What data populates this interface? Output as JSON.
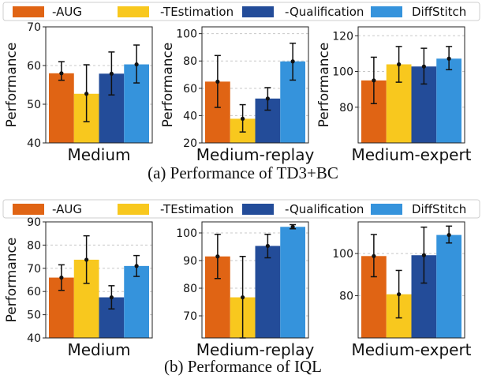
{
  "legend_items": [
    "-AUG",
    "-TEstimation",
    "-Qualification",
    "DiffStitch"
  ],
  "colors": [
    "#e06414",
    "#f8c81e",
    "#234c99",
    "#3593dc"
  ],
  "groups": [
    {
      "caption": "(a) Performance of TD3+BC"
    },
    {
      "caption": "(b) Performance of IQL"
    }
  ],
  "chart_data": [
    {
      "type": "bar",
      "group": 0,
      "title": "",
      "xlabel": "Medium",
      "ylabel": "Performance",
      "ylim": [
        40,
        70
      ],
      "yticks": [
        40,
        50,
        60,
        70
      ],
      "grid": true,
      "series": [
        {
          "name": "-AUG",
          "value": 58.0,
          "err": [
            56.2,
            61.0
          ]
        },
        {
          "name": "-TEstimation",
          "value": 52.7,
          "err": [
            45.5,
            60.2
          ]
        },
        {
          "name": "-Qualification",
          "value": 57.9,
          "err": [
            52.4,
            63.5
          ]
        },
        {
          "name": "DiffStitch",
          "value": 60.3,
          "err": [
            55.5,
            65.3
          ]
        }
      ]
    },
    {
      "type": "bar",
      "group": 0,
      "title": "",
      "xlabel": "Medium-replay",
      "ylabel": "Performance",
      "ylim": [
        20,
        105
      ],
      "yticks": [
        20,
        40,
        60,
        80,
        100
      ],
      "grid": true,
      "series": [
        {
          "name": "-AUG",
          "value": 64.9,
          "err": [
            46.0,
            84.0
          ]
        },
        {
          "name": "-TEstimation",
          "value": 37.7,
          "err": [
            28.0,
            48.0
          ]
        },
        {
          "name": "-Qualification",
          "value": 52.5,
          "err": [
            44.0,
            60.5
          ]
        },
        {
          "name": "DiffStitch",
          "value": 79.7,
          "err": [
            66.0,
            93.0
          ]
        }
      ]
    },
    {
      "type": "bar",
      "group": 0,
      "title": "",
      "xlabel": "Medium-expert",
      "ylabel": "Performance",
      "ylim": [
        60,
        125
      ],
      "yticks": [
        80,
        100,
        120
      ],
      "grid": true,
      "series": [
        {
          "name": "-AUG",
          "value": 95.0,
          "err": [
            82.0,
            108.0
          ]
        },
        {
          "name": "-TEstimation",
          "value": 104.0,
          "err": [
            94.0,
            114.0
          ]
        },
        {
          "name": "-Qualification",
          "value": 102.8,
          "err": [
            93.0,
            113.0
          ]
        },
        {
          "name": "DiffStitch",
          "value": 107.2,
          "err": [
            101.0,
            114.0
          ]
        }
      ]
    },
    {
      "type": "bar",
      "group": 1,
      "title": "",
      "xlabel": "Medium",
      "ylabel": "Performance",
      "ylim": [
        40,
        90
      ],
      "yticks": [
        40,
        50,
        60,
        70,
        80,
        90
      ],
      "grid": true,
      "series": [
        {
          "name": "-AUG",
          "value": 66.0,
          "err": [
            60.5,
            71.5
          ]
        },
        {
          "name": "-TEstimation",
          "value": 73.7,
          "err": [
            63.5,
            84.0
          ]
        },
        {
          "name": "-Qualification",
          "value": 57.5,
          "err": [
            52.5,
            62.5
          ]
        },
        {
          "name": "DiffStitch",
          "value": 71.0,
          "err": [
            66.5,
            75.5
          ]
        }
      ]
    },
    {
      "type": "bar",
      "group": 1,
      "title": "",
      "xlabel": "Medium-replay",
      "ylabel": "",
      "ylim": [
        62,
        104
      ],
      "yticks": [
        70,
        80,
        90,
        100
      ],
      "grid": true,
      "series": [
        {
          "name": "-AUG",
          "value": 91.5,
          "err": [
            83.5,
            99.5
          ]
        },
        {
          "name": "-TEstimation",
          "value": 76.7,
          "err": [
            62.0,
            91.5
          ]
        },
        {
          "name": "-Qualification",
          "value": 95.3,
          "err": [
            91.0,
            99.5
          ]
        },
        {
          "name": "DiffStitch",
          "value": 102.2,
          "err": [
            101.5,
            103.0
          ]
        }
      ]
    },
    {
      "type": "bar",
      "group": 1,
      "title": "",
      "xlabel": "Medium-expert",
      "ylabel": "",
      "ylim": [
        60,
        115
      ],
      "yticks": [
        80,
        100
      ],
      "grid": true,
      "series": [
        {
          "name": "-AUG",
          "value": 98.8,
          "err": [
            89.0,
            109.0
          ]
        },
        {
          "name": "-TEstimation",
          "value": 80.7,
          "err": [
            69.5,
            92.0
          ]
        },
        {
          "name": "-Qualification",
          "value": 99.2,
          "err": [
            86.0,
            112.5
          ]
        },
        {
          "name": "DiffStitch",
          "value": 108.8,
          "err": [
            105.0,
            113.0
          ]
        }
      ]
    }
  ]
}
